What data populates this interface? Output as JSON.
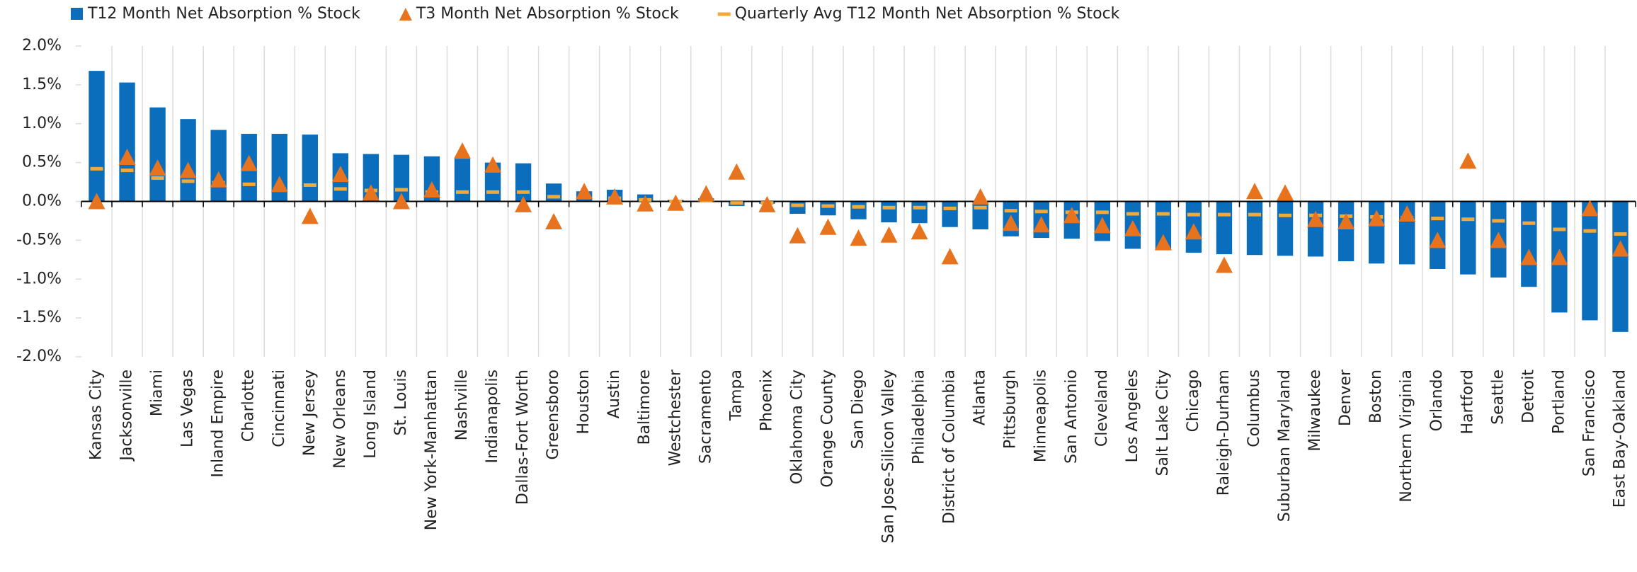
{
  "chart_data": {
    "type": "bar",
    "categories": [
      "Kansas City",
      "Jacksonville",
      "Miami",
      "Las Vegas",
      "Inland Empire",
      "Charlotte",
      "Cincinnati",
      "New Jersey",
      "New Orleans",
      "Long Island",
      "St. Louis",
      "New York-Manhattan",
      "Nashville",
      "Indianapolis",
      "Dallas-Fort Worth",
      "Greensboro",
      "Houston",
      "Austin",
      "Baltimore",
      "Westchester",
      "Sacramento",
      "Tampa",
      "Phoenix",
      "Oklahoma City",
      "Orange County",
      "San Diego",
      "San Jose-Silicon Valley",
      "Philadelphia",
      "District of Columbia",
      "Atlanta",
      "Pittsburgh",
      "Minneapolis",
      "San Antonio",
      "Cleveland",
      "Los Angeles",
      "Salt Lake City",
      "Chicago",
      "Raleigh-Durham",
      "Columbus",
      "Suburban Maryland",
      "Milwaukee",
      "Denver",
      "Boston",
      "Northern Virginia",
      "Orlando",
      "Hartford",
      "Seattle",
      "Detroit",
      "Portland",
      "San Francisco",
      "East Bay-Oakland"
    ],
    "series": [
      {
        "name": "T12 Month Net Absorption % Stock",
        "color": "#0a6ebd",
        "marker": "bar",
        "values": [
          1.68,
          1.53,
          1.21,
          1.06,
          0.92,
          0.87,
          0.87,
          0.86,
          0.62,
          0.61,
          0.6,
          0.58,
          0.55,
          0.5,
          0.49,
          0.23,
          0.13,
          0.15,
          0.09,
          0.02,
          0.04,
          -0.06,
          -0.03,
          -0.16,
          -0.18,
          -0.23,
          -0.27,
          -0.28,
          -0.33,
          -0.36,
          -0.45,
          -0.47,
          -0.48,
          -0.51,
          -0.61,
          -0.62,
          -0.66,
          -0.68,
          -0.69,
          -0.7,
          -0.71,
          -0.77,
          -0.8,
          -0.81,
          -0.87,
          -0.94,
          -0.98,
          -1.1,
          -1.43,
          -1.53,
          -1.68
        ]
      },
      {
        "name": "T3 Month Net Absorption % Stock",
        "color": "#e8731e",
        "marker": "triangle",
        "values": [
          0.0,
          0.57,
          0.43,
          0.4,
          0.28,
          0.49,
          0.22,
          -0.19,
          0.35,
          0.11,
          0.0,
          0.15,
          0.65,
          0.47,
          -0.04,
          -0.26,
          0.13,
          0.06,
          -0.03,
          -0.02,
          0.1,
          0.38,
          -0.04,
          -0.44,
          -0.33,
          -0.47,
          -0.43,
          -0.39,
          -0.71,
          0.06,
          -0.28,
          -0.3,
          -0.18,
          -0.31,
          -0.35,
          -0.53,
          -0.39,
          -0.82,
          0.13,
          0.11,
          -0.23,
          -0.26,
          -0.22,
          -0.16,
          -0.5,
          0.52,
          -0.5,
          -0.72,
          -0.72,
          -0.09,
          -0.61
        ]
      },
      {
        "name": "Quarterly Avg T12 Month Net Absorption % Stock",
        "color": "#f2a93b",
        "marker": "dash",
        "values": [
          0.42,
          0.4,
          0.3,
          0.26,
          0.24,
          0.22,
          0.16,
          0.21,
          0.16,
          0.14,
          0.15,
          0.12,
          0.12,
          0.12,
          0.12,
          0.06,
          0.05,
          0.04,
          0.02,
          0.0,
          0.01,
          -0.02,
          -0.02,
          -0.05,
          -0.06,
          -0.07,
          -0.08,
          -0.08,
          -0.09,
          -0.08,
          -0.12,
          -0.13,
          -0.14,
          -0.14,
          -0.16,
          -0.16,
          -0.17,
          -0.17,
          -0.17,
          -0.18,
          -0.18,
          -0.19,
          -0.2,
          -0.21,
          -0.22,
          -0.23,
          -0.25,
          -0.28,
          -0.36,
          -0.38,
          -0.42
        ]
      }
    ],
    "ylim": [
      -2,
      2
    ],
    "yticks": [
      {
        "value": 2,
        "label": "2.0%"
      },
      {
        "value": 1.5,
        "label": "1.5%"
      },
      {
        "value": 1,
        "label": "1.0%"
      },
      {
        "value": 0.5,
        "label": "0.5%"
      },
      {
        "value": 0,
        "label": "0.0%"
      },
      {
        "value": -0.5,
        "label": "-0.5%"
      },
      {
        "value": -1,
        "label": "-1.0%"
      },
      {
        "value": -1.5,
        "label": "-1.5%"
      },
      {
        "value": -2,
        "label": "-2.0%"
      }
    ],
    "legend": "top-left"
  }
}
